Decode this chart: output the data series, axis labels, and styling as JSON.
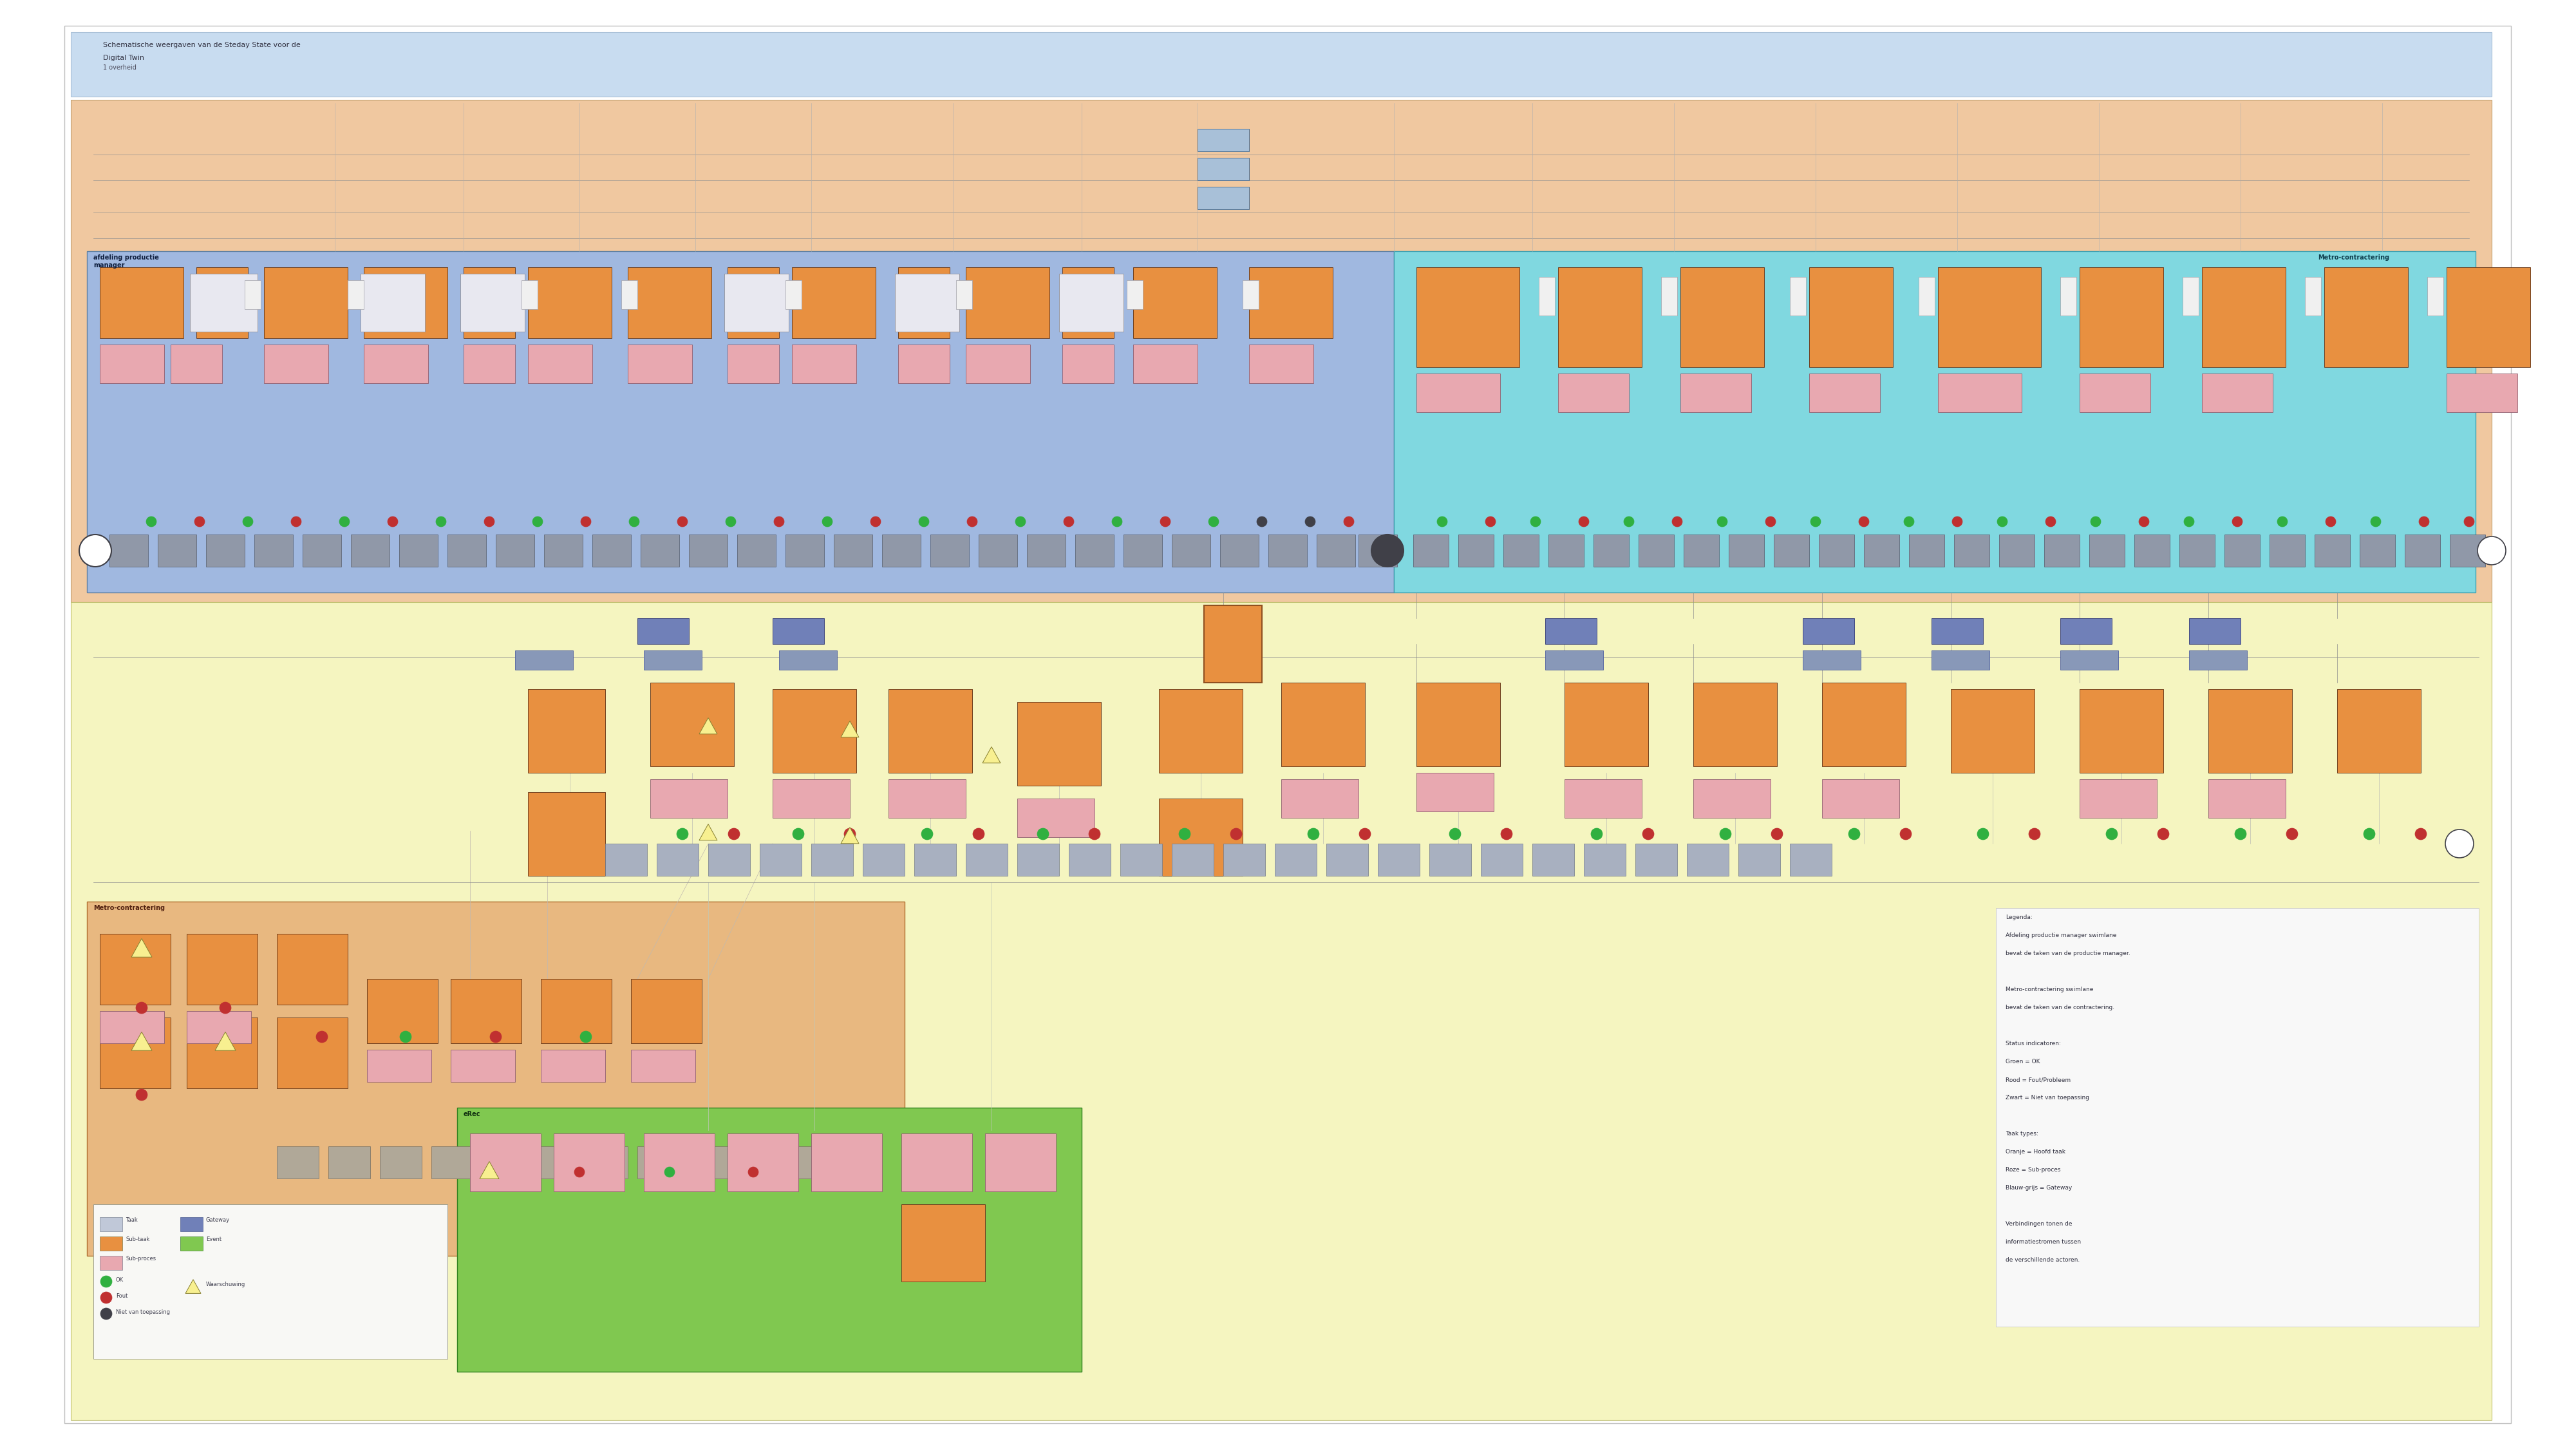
{
  "bg_color": "#FFFFFF",
  "header_color": "#C8DCF0",
  "header_border": "#A8C0D8",
  "peach_bg": "#F0C8A0",
  "yellow_bg": "#F5F5C0",
  "blue_lane_color": "#A0B8E0",
  "cyan_lane_color": "#80D8E0",
  "orange_lane_color": "#E8B880",
  "green_lane_color": "#80C850",
  "process_orange": "#E89040",
  "process_pink": "#E8A8B0",
  "process_blue": "#7080B8",
  "process_gray": "#9098A8",
  "process_light": "#C8D0D8",
  "process_white": "#E8E8F0",
  "header_title_line1": "Schematische weergaven van de Steday State voor de",
  "header_title_line2": "Digital Twin",
  "header_subtitle": "1 overheid",
  "blue_lane_label": "afdeling productie\nmanager",
  "cyan_lane_label": "Metro-contractering",
  "orange_lane_label": "Metro-contractering",
  "green_lane_label": "eRec"
}
